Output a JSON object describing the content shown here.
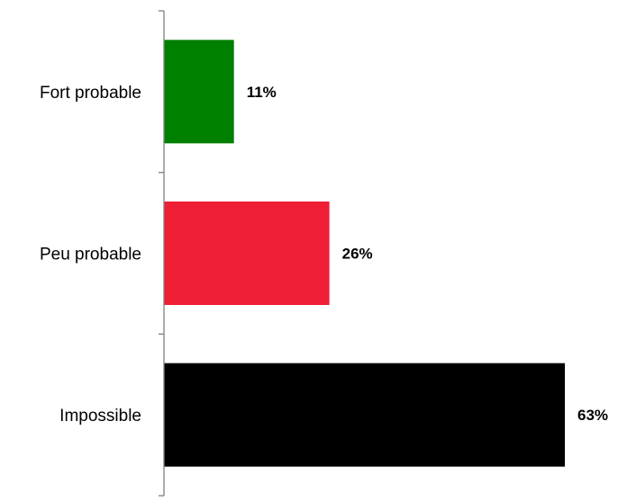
{
  "chart_data": {
    "type": "bar",
    "orientation": "horizontal",
    "title": "",
    "xlabel": "",
    "ylabel": "",
    "categories": [
      "Fort probable",
      "Peu probable",
      "Impossible"
    ],
    "values": [
      11,
      26,
      63
    ],
    "value_labels": [
      "11%",
      "26%",
      "63%"
    ],
    "colors": [
      "#008000",
      "#ee1f35",
      "#000000"
    ],
    "xlim": [
      0,
      63
    ],
    "grid": false,
    "legend": "none"
  }
}
